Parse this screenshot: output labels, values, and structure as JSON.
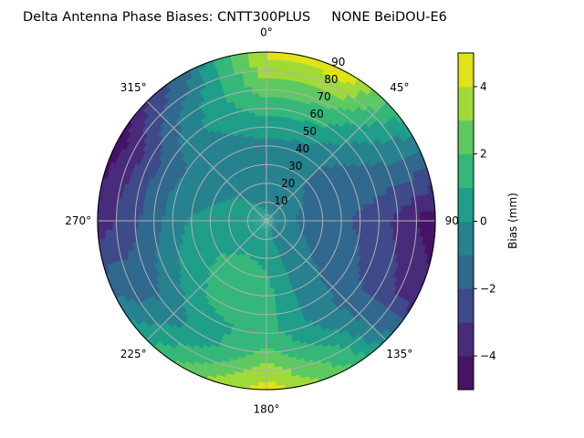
{
  "chart_data": {
    "type": "heatmap",
    "subtype": "polar-filled-contour",
    "title": "Delta Antenna Phase Biases: CNTT300PLUS     NONE BeiDOU-E6",
    "colorbar_label": "Bias (mm)",
    "colormap": "viridis",
    "levels": [
      -5,
      -4,
      -3,
      -2,
      -1,
      0,
      1,
      2,
      3,
      4,
      5
    ],
    "level_colors": [
      "#471365",
      "#482b7a",
      "#3e4a89",
      "#31688e",
      "#26828e",
      "#1f9e89",
      "#35b779",
      "#5ec962",
      "#a0da39",
      "#dfe318"
    ],
    "colorbar_ticks": [
      -4,
      -2,
      0,
      2,
      4
    ],
    "colorbar_tick_labels": [
      "−4",
      "−2",
      "0",
      "2",
      "4"
    ],
    "angular_direction": "clockwise",
    "zero_location": "top",
    "angular_tick_labels": [
      "0°",
      "45°",
      "90°",
      "135°",
      "180°",
      "225°",
      "270°",
      "315°"
    ],
    "radial_ticks": [
      10,
      20,
      30,
      40,
      50,
      60,
      70,
      80,
      90
    ],
    "radial_tick_labels": [
      "10",
      "20",
      "30",
      "40",
      "50",
      "60",
      "70",
      "80",
      "90"
    ],
    "radial_range": [
      0,
      90
    ],
    "grid": true,
    "azimuth_deg": [
      0,
      30,
      60,
      90,
      120,
      150,
      180,
      210,
      240,
      270,
      300,
      330
    ],
    "zenith_deg": [
      0,
      10,
      20,
      30,
      40,
      50,
      60,
      70,
      80,
      90
    ],
    "bias_mm": [
      [
        0.3,
        -0.3,
        -0.5,
        -0.5,
        -0.2,
        0.5,
        1.5,
        2.5,
        3.5,
        4.3
      ],
      [
        0.3,
        -0.4,
        -0.6,
        -0.7,
        -0.5,
        0.3,
        1.2,
        2.2,
        3.6,
        4.5
      ],
      [
        0.3,
        -0.5,
        -0.9,
        -1.3,
        -1.5,
        -1.3,
        -1.0,
        -0.6,
        -0.3,
        0.0
      ],
      [
        0.3,
        -0.6,
        -1.3,
        -1.6,
        -1.8,
        -2.2,
        -2.6,
        -3.3,
        -4.0,
        -4.7
      ],
      [
        0.3,
        -0.4,
        -0.8,
        -1.2,
        -1.4,
        -1.7,
        -2.2,
        -2.6,
        -3.0,
        -3.3
      ],
      [
        0.3,
        -0.3,
        -0.4,
        -0.5,
        -0.6,
        -0.6,
        -0.4,
        0.2,
        1.2,
        2.0
      ],
      [
        0.3,
        0.5,
        0.8,
        1.1,
        1.4,
        1.3,
        1.4,
        2.3,
        3.5,
        4.6
      ],
      [
        0.3,
        0.5,
        1.0,
        1.5,
        1.6,
        1.4,
        0.7,
        0.4,
        1.3,
        2.4
      ],
      [
        0.3,
        0.4,
        0.6,
        0.9,
        0.7,
        0.2,
        -0.5,
        -1.3,
        -1.2,
        -0.7
      ],
      [
        0.3,
        0.5,
        0.5,
        0.3,
        0.1,
        -0.5,
        -1.4,
        -2.2,
        -2.9,
        -3.6
      ],
      [
        0.3,
        0.3,
        0.1,
        -0.3,
        -0.6,
        -1.0,
        -1.6,
        -2.6,
        -3.6,
        -4.6
      ],
      [
        0.3,
        0.0,
        -0.3,
        -0.4,
        -0.4,
        -0.2,
        0.2,
        0.0,
        -0.8,
        -1.5
      ]
    ]
  }
}
